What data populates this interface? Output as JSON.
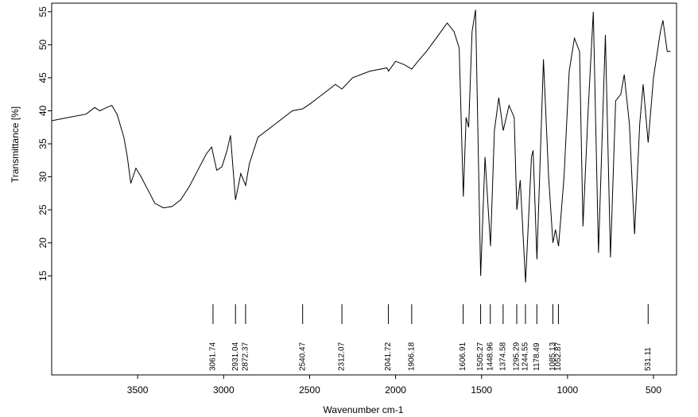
{
  "chart_data": {
    "type": "line",
    "xlabel": "Wavenumber cm-1",
    "ylabel": "Transmittance [%]",
    "xlim": [
      4000,
      366
    ],
    "ylim": [
      0,
      56.3
    ],
    "xticks": [
      3500,
      3000,
      2500,
      2000,
      1500,
      1000,
      500
    ],
    "yticks": [
      15,
      20,
      25,
      30,
      35,
      40,
      45,
      50,
      55
    ],
    "series": [
      {
        "color": "#000000",
        "x": [
          4000,
          3900,
          3800,
          3750,
          3720,
          3680,
          3650,
          3620,
          3580,
          3560,
          3540,
          3510,
          3480,
          3440,
          3400,
          3350,
          3300,
          3250,
          3200,
          3150,
          3100,
          3070,
          3040,
          3010,
          2980,
          2960,
          2931,
          2900,
          2872,
          2850,
          2800,
          2700,
          2600,
          2540,
          2500,
          2450,
          2400,
          2350,
          2312,
          2250,
          2150,
          2050,
          2041,
          2000,
          1950,
          1906,
          1870,
          1820,
          1750,
          1700,
          1660,
          1630,
          1606,
          1590,
          1575,
          1555,
          1535,
          1505,
          1480,
          1448,
          1425,
          1400,
          1374,
          1340,
          1310,
          1295,
          1275,
          1244,
          1210,
          1200,
          1178,
          1140,
          1110,
          1085,
          1070,
          1052,
          1020,
          990,
          960,
          930,
          910,
          880,
          850,
          820,
          780,
          750,
          720,
          690,
          670,
          640,
          610,
          580,
          560,
          531,
          500,
          460,
          445,
          420,
          400
        ],
        "values": [
          38.5,
          39,
          39.5,
          40.5,
          40,
          40.5,
          40.8,
          39.5,
          36,
          33,
          29,
          31.3,
          30,
          28,
          26,
          25.3,
          25.5,
          26.5,
          28.5,
          31,
          33.5,
          34.5,
          31,
          31.5,
          34,
          36.3,
          26.5,
          30.5,
          28.7,
          32,
          36,
          38,
          40,
          40.3,
          41,
          42,
          43,
          44,
          43.3,
          45,
          46,
          46.5,
          46,
          47.5,
          47,
          46.3,
          47.5,
          49,
          51.5,
          53.3,
          52,
          49.5,
          27,
          39,
          37.5,
          52,
          55.3,
          15,
          33,
          19.5,
          37,
          42,
          37,
          40.8,
          39,
          25,
          29.5,
          14,
          33,
          34,
          17.5,
          47.8,
          30,
          20,
          22,
          19.5,
          30,
          46,
          51,
          49,
          22.5,
          40,
          55,
          18.5,
          51.5,
          17.8,
          41.5,
          42.5,
          45.5,
          38,
          21.3,
          38,
          44,
          35.2,
          45,
          52,
          53.7,
          49,
          49
        ]
      }
    ],
    "annotations": [
      3061.74,
      2931.04,
      2872.37,
      2540.47,
      2312.07,
      2041.72,
      1906.18,
      1606.91,
      1505.27,
      1448.96,
      1374.58,
      1295.29,
      1244.55,
      1178.49,
      1085.13,
      1052.87,
      531.11
    ]
  }
}
